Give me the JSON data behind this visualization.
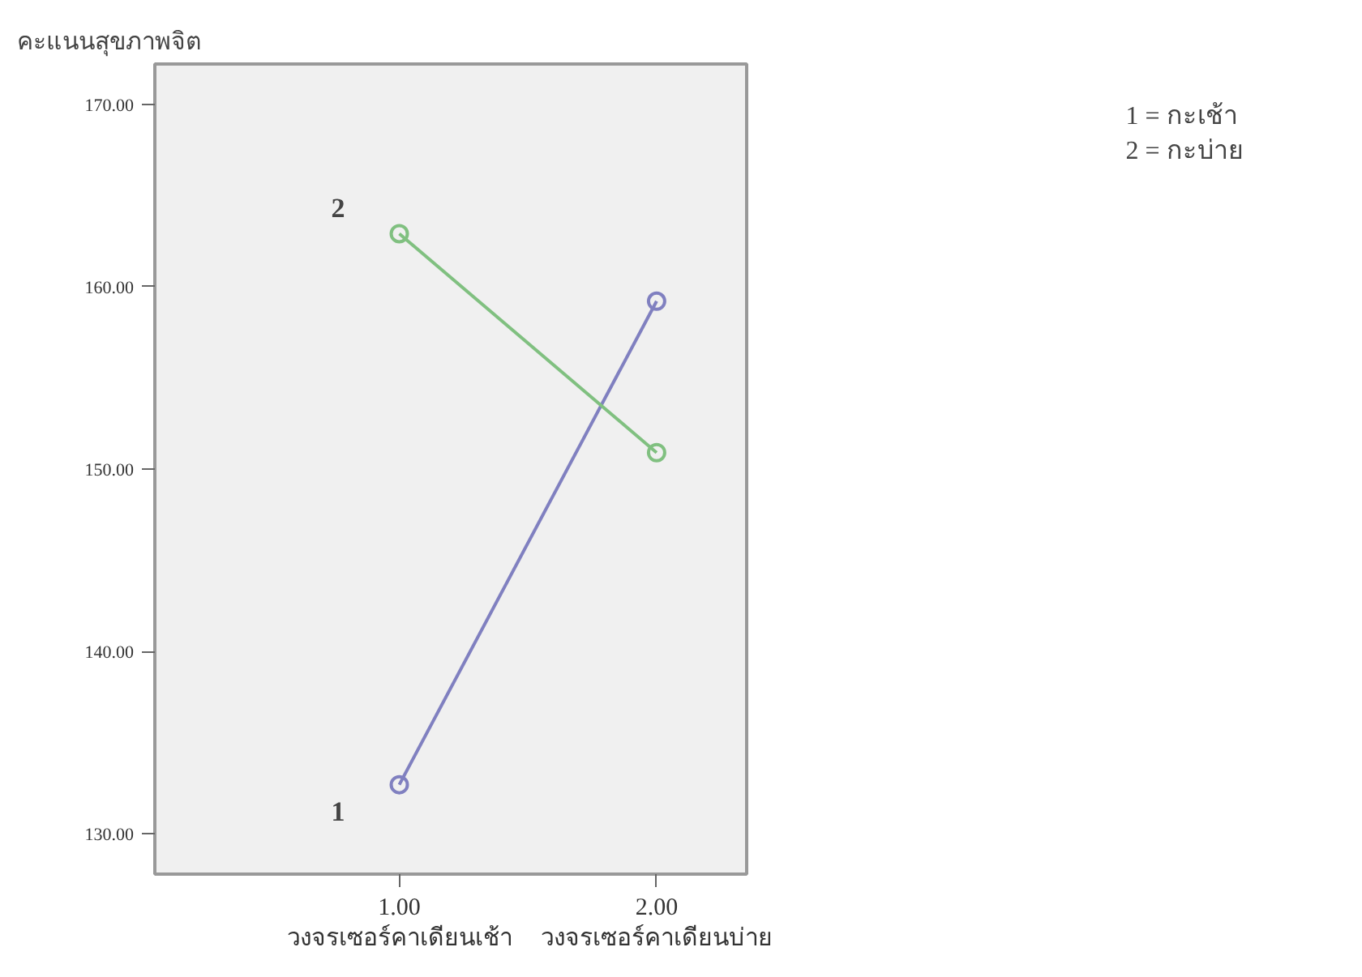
{
  "chart_data": {
    "type": "line",
    "ylabel": "คะแนนสุขภาพจิต",
    "x": [
      1,
      2
    ],
    "xlim": [
      0.05,
      2.35
    ],
    "xticks": [
      {
        "value": 1,
        "label": "1.00\nวงจรเซอร์คาเดียนเช้า"
      },
      {
        "value": 2,
        "label": "2.00\nวงจรเซอร์คาเดียนบ่าย"
      }
    ],
    "ylim": [
      127.8,
      172.2
    ],
    "yticks": [
      {
        "value": 130,
        "label": "130.00"
      },
      {
        "value": 140,
        "label": "140.00"
      },
      {
        "value": 150,
        "label": "150.00"
      },
      {
        "value": 160,
        "label": "160.00"
      },
      {
        "value": 170,
        "label": "170.00"
      }
    ],
    "series": [
      {
        "name": "1",
        "color": "#8080c0",
        "values": [
          132.7,
          159.2
        ]
      },
      {
        "name": "2",
        "color": "#80c080",
        "values": [
          162.9,
          150.9
        ]
      }
    ],
    "marker": "circle",
    "grid": false,
    "annotations": [
      "1 = กะเช้า",
      "2 = กะบ่าย"
    ]
  }
}
